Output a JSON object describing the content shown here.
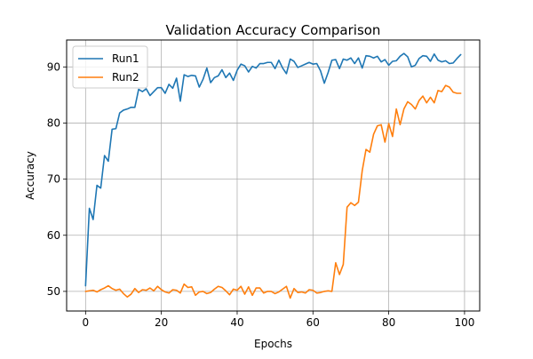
{
  "chart_data": {
    "type": "line",
    "title": "Validation Accuracy Comparison",
    "xlabel": "Epochs",
    "ylabel": "Accuracy",
    "xlim": [
      -5,
      104
    ],
    "ylim": [
      46.5,
      94.8
    ],
    "x_ticks": [
      0,
      20,
      40,
      60,
      80,
      100
    ],
    "y_ticks": [
      50,
      60,
      70,
      80,
      90
    ],
    "grid": true,
    "legend_position": "upper-left",
    "x": [
      0,
      1,
      2,
      3,
      4,
      5,
      6,
      7,
      8,
      9,
      10,
      11,
      12,
      13,
      14,
      15,
      16,
      17,
      18,
      19,
      20,
      21,
      22,
      23,
      24,
      25,
      26,
      27,
      28,
      29,
      30,
      31,
      32,
      33,
      34,
      35,
      36,
      37,
      38,
      39,
      40,
      41,
      42,
      43,
      44,
      45,
      46,
      47,
      48,
      49,
      50,
      51,
      52,
      53,
      54,
      55,
      56,
      57,
      58,
      59,
      60,
      61,
      62,
      63,
      64,
      65,
      66,
      67,
      68,
      69,
      70,
      71,
      72,
      73,
      74,
      75,
      76,
      77,
      78,
      79,
      80,
      81,
      82,
      83,
      84,
      85,
      86,
      87,
      88,
      89,
      90,
      91,
      92,
      93,
      94,
      95,
      96,
      97,
      98,
      99
    ],
    "series": [
      {
        "name": "Run1",
        "color": "#1f77b4",
        "values": [
          51.0,
          64.8,
          62.8,
          68.9,
          68.4,
          74.2,
          73.2,
          78.9,
          79.0,
          81.8,
          82.3,
          82.5,
          82.8,
          82.8,
          86.0,
          85.6,
          86.1,
          84.9,
          85.6,
          86.3,
          86.3,
          85.3,
          86.9,
          86.2,
          88.0,
          83.9,
          88.6,
          88.3,
          88.5,
          88.4,
          86.4,
          87.8,
          89.8,
          87.2,
          88.1,
          88.4,
          89.5,
          88.1,
          88.9,
          87.6,
          89.4,
          90.5,
          90.2,
          89.1,
          90.1,
          89.8,
          90.6,
          90.6,
          90.8,
          90.8,
          89.7,
          91.2,
          89.8,
          88.8,
          91.4,
          91.0,
          89.9,
          90.2,
          90.5,
          90.8,
          90.5,
          90.6,
          89.3,
          87.1,
          89.0,
          91.2,
          91.3,
          89.7,
          91.4,
          91.2,
          91.6,
          90.6,
          91.6,
          89.8,
          92.0,
          91.9,
          91.6,
          91.9,
          90.9,
          91.3,
          90.3,
          91.0,
          91.1,
          91.9,
          92.4,
          91.8,
          90.0,
          90.3,
          91.5,
          92.0,
          91.9,
          91.0,
          92.3,
          91.2,
          90.9,
          91.1,
          90.6,
          90.7,
          91.5,
          92.2
        ]
      },
      {
        "name": "Run2",
        "color": "#ff7f0e",
        "values": [
          50.0,
          50.1,
          50.2,
          49.9,
          50.3,
          50.6,
          51.0,
          50.5,
          50.2,
          50.4,
          49.6,
          49.0,
          49.5,
          50.5,
          49.8,
          50.3,
          50.2,
          50.6,
          50.1,
          50.9,
          50.3,
          49.9,
          49.7,
          50.3,
          50.2,
          49.7,
          51.3,
          50.7,
          50.8,
          49.3,
          49.9,
          50.0,
          49.6,
          49.8,
          50.4,
          50.9,
          50.7,
          50.1,
          49.4,
          50.4,
          50.2,
          50.9,
          49.5,
          50.8,
          49.3,
          50.6,
          50.6,
          49.7,
          50.0,
          50.0,
          49.6,
          49.9,
          50.4,
          50.9,
          48.8,
          50.5,
          49.8,
          49.9,
          49.7,
          50.3,
          50.2,
          49.7,
          49.8,
          50.0,
          50.1,
          50.0,
          55.1,
          53.0,
          54.8,
          65.0,
          65.8,
          65.3,
          65.9,
          71.5,
          75.3,
          74.8,
          78.0,
          79.5,
          79.7,
          76.6,
          79.9,
          77.6,
          82.5,
          79.7,
          82.5,
          83.8,
          83.3,
          82.5,
          84.0,
          84.8,
          83.6,
          84.6,
          83.6,
          85.8,
          85.6,
          86.7,
          86.4,
          85.5,
          85.3,
          85.3
        ]
      }
    ]
  }
}
